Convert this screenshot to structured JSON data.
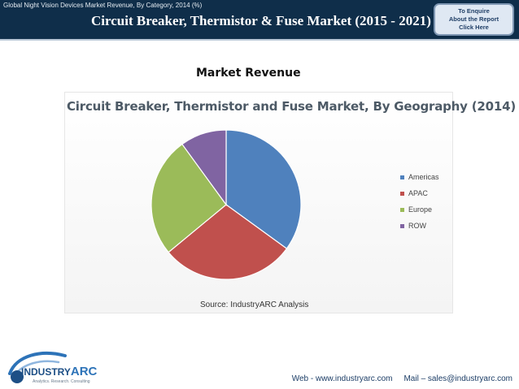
{
  "header": {
    "caption": "Global Night Vision Devices Market Revenue, By Category, 2014 (%)",
    "title": "Circuit Breaker, Thermistor & Fuse Market (2015 - 2021)",
    "enquire": {
      "line1": "To Enquire",
      "line2": "About the Report",
      "line3": "Click Here"
    }
  },
  "section": {
    "heading": "Market Revenue"
  },
  "chart_data": {
    "type": "pie",
    "title": "Circuit Breaker, Thermistor and Fuse Market, By Geography (2014)",
    "categories": [
      "Americas",
      "APAC",
      "Europe",
      "ROW"
    ],
    "values": [
      35,
      29,
      26,
      10
    ],
    "colors": [
      "#4f81bd",
      "#c0504d",
      "#9bbb59",
      "#8064a2"
    ],
    "start_angle_deg": 0,
    "direction": "clockwise",
    "legend_position": "right",
    "source": "Source: IndustryARC Analysis"
  },
  "footer": {
    "logo_main": "INDUSTRY",
    "logo_accent": "ARC",
    "logo_tagline": "Analytics. Research. Consulting",
    "web": "Web - www.industryarc.com",
    "mail": "Mail – sales@industryarc.com"
  }
}
